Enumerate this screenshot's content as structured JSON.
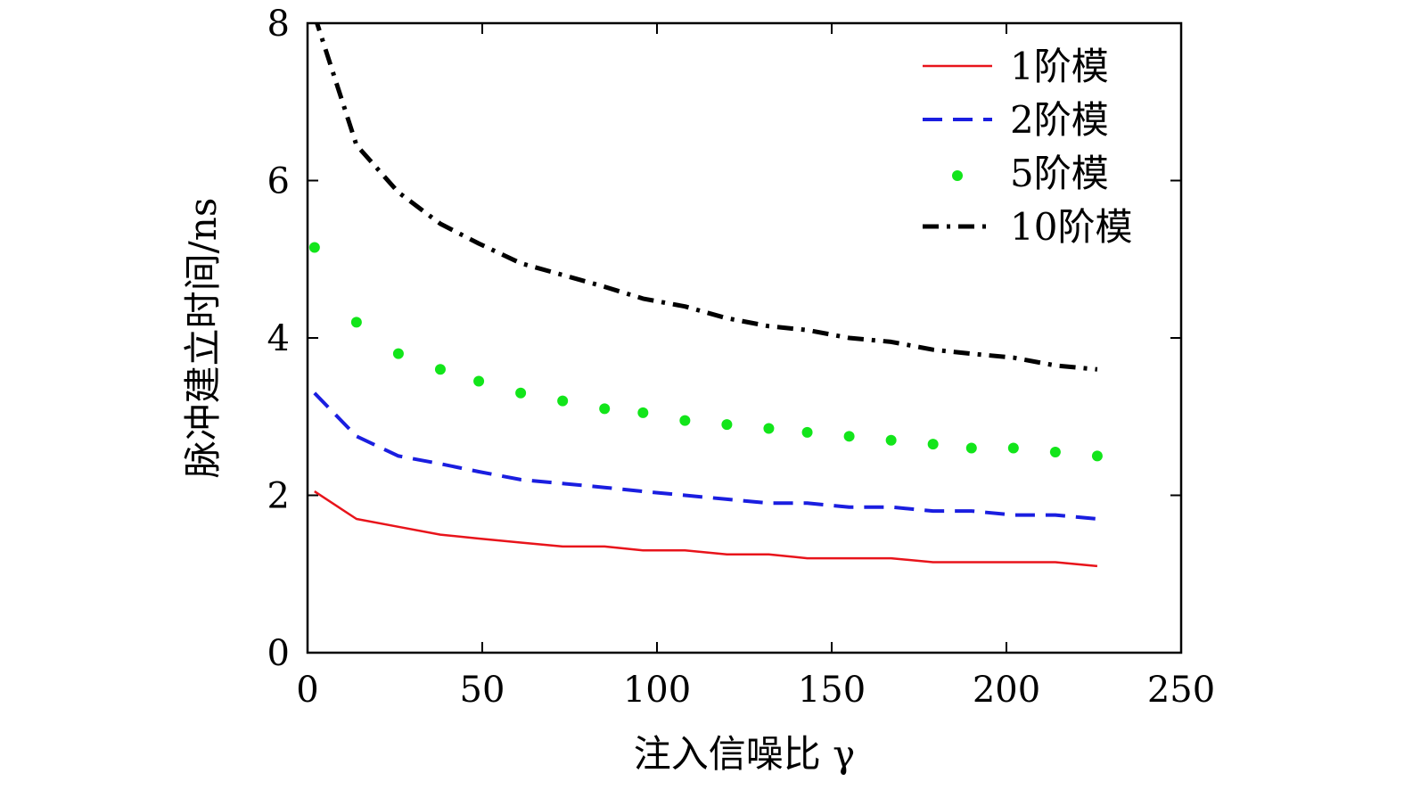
{
  "chart_data": {
    "type": "line",
    "xlabel": "注入信噪比 γ",
    "ylabel": "脉冲建立时间/ns",
    "xlim": [
      0,
      250
    ],
    "ylim": [
      0,
      8
    ],
    "xticks": [
      0,
      50,
      100,
      150,
      200,
      250
    ],
    "yticks": [
      0,
      2,
      4,
      6,
      8
    ],
    "xtick_labels": [
      "0",
      "50",
      "100",
      "150",
      "200",
      "250"
    ],
    "ytick_labels": [
      "0",
      "2",
      "4",
      "6",
      "8"
    ],
    "grid": false,
    "legend_position": "top-right",
    "series": [
      {
        "name": "1阶模",
        "color": "#e8141b",
        "style": "solid",
        "x": [
          2,
          14,
          26,
          38,
          49,
          61,
          73,
          85,
          96,
          108,
          120,
          132,
          143,
          155,
          167,
          179,
          190,
          202,
          214,
          226
        ],
        "y": [
          2.05,
          1.7,
          1.6,
          1.5,
          1.45,
          1.4,
          1.35,
          1.35,
          1.3,
          1.3,
          1.25,
          1.25,
          1.2,
          1.2,
          1.2,
          1.15,
          1.15,
          1.15,
          1.15,
          1.1
        ]
      },
      {
        "name": "2阶模",
        "color": "#1a1ee0",
        "style": "dashed",
        "x": [
          2,
          14,
          26,
          38,
          49,
          61,
          73,
          85,
          96,
          108,
          120,
          132,
          143,
          155,
          167,
          179,
          190,
          202,
          214,
          226
        ],
        "y": [
          3.3,
          2.75,
          2.5,
          2.4,
          2.3,
          2.2,
          2.15,
          2.1,
          2.05,
          2.0,
          1.95,
          1.9,
          1.9,
          1.85,
          1.85,
          1.8,
          1.8,
          1.75,
          1.75,
          1.7
        ]
      },
      {
        "name": "5阶模",
        "color": "#12e51a",
        "style": "dotted",
        "x": [
          2,
          14,
          26,
          38,
          49,
          61,
          73,
          85,
          96,
          108,
          120,
          132,
          143,
          155,
          167,
          179,
          190,
          202,
          214,
          226
        ],
        "y": [
          5.15,
          4.2,
          3.8,
          3.6,
          3.45,
          3.3,
          3.2,
          3.1,
          3.05,
          2.95,
          2.9,
          2.85,
          2.8,
          2.75,
          2.7,
          2.65,
          2.6,
          2.6,
          2.55,
          2.5
        ]
      },
      {
        "name": "10阶模",
        "color": "#000000",
        "style": "dashdot",
        "x": [
          2,
          14,
          26,
          38,
          49,
          61,
          73,
          85,
          96,
          108,
          120,
          132,
          143,
          155,
          167,
          179,
          190,
          202,
          214,
          226
        ],
        "y": [
          8.1,
          6.45,
          5.85,
          5.45,
          5.2,
          4.95,
          4.8,
          4.65,
          4.5,
          4.4,
          4.25,
          4.15,
          4.1,
          4.0,
          3.95,
          3.85,
          3.8,
          3.75,
          3.65,
          3.6
        ]
      }
    ]
  }
}
